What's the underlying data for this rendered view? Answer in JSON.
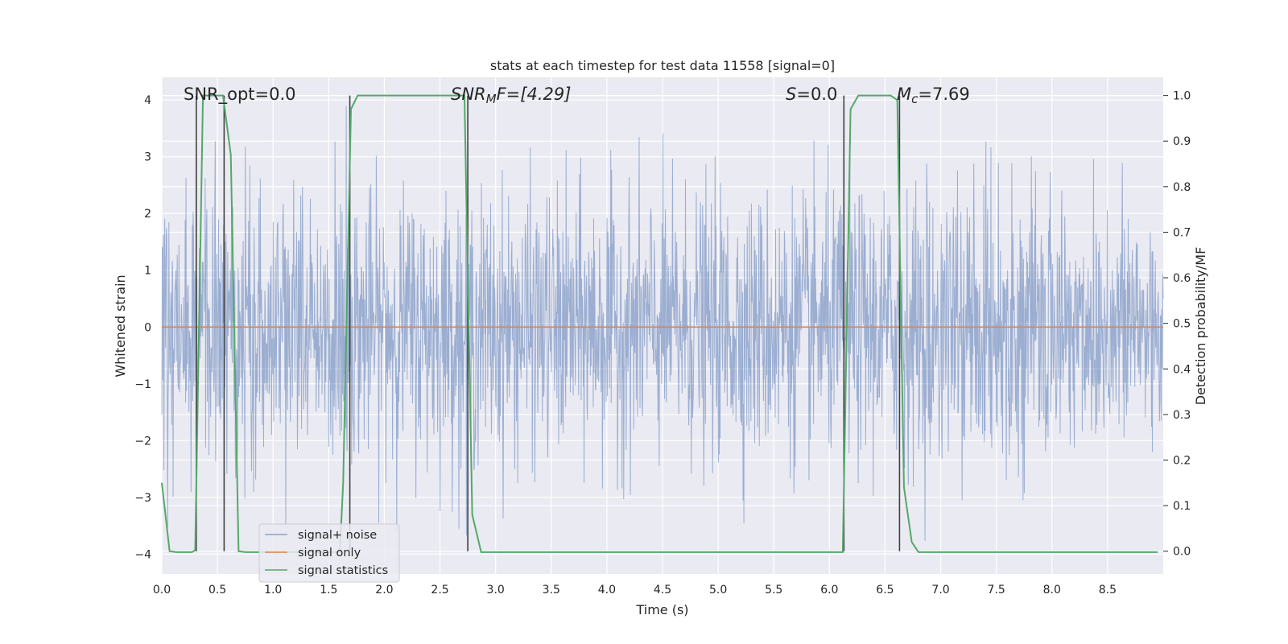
{
  "chart_data": {
    "type": "line",
    "title": "stats at each timestep for test data 11558 [signal=0]",
    "xlabel": "Time (s)",
    "ylabel": "Whitened strain",
    "y2label": "Detection probability/MF",
    "xlim": [
      0,
      9.0
    ],
    "ylim": [
      -4.35,
      4.4
    ],
    "y2lim": [
      -0.05,
      1.04
    ],
    "x_ticks": [
      "0.0",
      "0.5",
      "1.0",
      "1.5",
      "2.0",
      "2.5",
      "3.0",
      "3.5",
      "4.0",
      "4.5",
      "5.0",
      "5.5",
      "6.0",
      "6.5",
      "7.0",
      "7.5",
      "8.0",
      "8.5"
    ],
    "y_ticks": [
      "4",
      "3",
      "2",
      "1",
      "0",
      "−1",
      "−2",
      "−3",
      "−4"
    ],
    "y2_ticks": [
      "1.0",
      "0.9",
      "0.8",
      "0.7",
      "0.6",
      "0.5",
      "0.4",
      "0.3",
      "0.2",
      "0.1",
      "0.0"
    ],
    "grid": true,
    "legend_position": "lower-left",
    "annotations": {
      "snr_opt": "SNR_opt=0.0",
      "snr_mf_main": "SNR",
      "snr_mf_sub": "M",
      "snr_mf_rest": "F=[4.29]",
      "s_main": "S",
      "s_rest": "=0.0",
      "mc_main": "M",
      "mc_sub": "c",
      "mc_rest": "=7.69"
    },
    "series": [
      {
        "name": "signal+ noise",
        "color": "#4c72b0",
        "description_values": {
          "x_start": 0,
          "x_end": 9.0,
          "sigma": 1.0,
          "typical_range": [
            -3.8,
            4.0
          ]
        }
      },
      {
        "name": "signal only",
        "color": "#dd8452",
        "constant_value": 0
      },
      {
        "name": "signal statistics",
        "color": "#55a868",
        "points": [
          [
            0.0,
            0.15
          ],
          [
            0.07,
            0.0
          ],
          [
            0.13,
            -0.002
          ],
          [
            0.2,
            -0.002
          ],
          [
            0.27,
            -0.002
          ],
          [
            0.3,
            0.002
          ],
          [
            0.37,
            1.0
          ],
          [
            0.55,
            1.0
          ],
          [
            0.62,
            0.87
          ],
          [
            0.69,
            0.0
          ],
          [
            0.75,
            -0.002
          ],
          [
            1.0,
            -0.002
          ],
          [
            1.6,
            -0.002
          ],
          [
            1.63,
            0.15
          ],
          [
            1.7,
            0.97
          ],
          [
            1.76,
            1.0
          ],
          [
            2.72,
            1.0
          ],
          [
            2.79,
            0.08
          ],
          [
            2.87,
            -0.002
          ],
          [
            3.0,
            -0.002
          ],
          [
            6.12,
            -0.002
          ],
          [
            6.19,
            0.97
          ],
          [
            6.26,
            1.0
          ],
          [
            6.55,
            1.0
          ],
          [
            6.61,
            0.99
          ],
          [
            6.67,
            0.14
          ],
          [
            6.74,
            0.02
          ],
          [
            6.8,
            -0.002
          ],
          [
            8.95,
            -0.002
          ]
        ]
      }
    ],
    "markers": {
      "color": "#404040",
      "x_values": [
        0.31,
        0.56,
        1.69,
        2.75,
        6.13,
        6.63
      ],
      "y2_value": 0.0
    }
  }
}
